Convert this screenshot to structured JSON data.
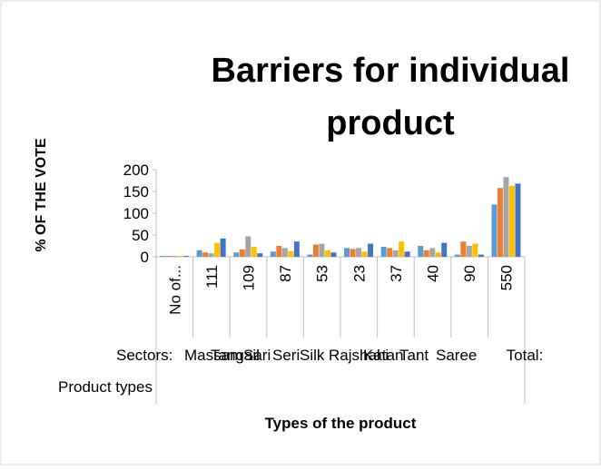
{
  "chart_data": {
    "type": "bar",
    "title": [
      "Barriers for individual",
      "product"
    ],
    "y_axis_label": "% OF THE VOTE",
    "x_axis_label": "Types of the product",
    "categories": [
      "No of...",
      "111",
      "109",
      "87",
      "53",
      "23",
      "37",
      "40",
      "90",
      "550"
    ],
    "outer_categories": [
      "Sectors:",
      "Product types",
      "Massam",
      "Tangail",
      "Sari",
      "Seri",
      "Silk",
      "Rajshahi",
      "Katan",
      "Tant",
      "Saree",
      "Total:"
    ],
    "series": [
      {
        "color": "#5b9bd5",
        "values": [
          2,
          15,
          10,
          12,
          5,
          20,
          23,
          25,
          5,
          120
        ]
      },
      {
        "color": "#ed7d31",
        "values": [
          2,
          10,
          17,
          25,
          28,
          18,
          20,
          15,
          35,
          158
        ]
      },
      {
        "color": "#a5a5a5",
        "values": [
          2,
          8,
          47,
          20,
          30,
          20,
          15,
          20,
          25,
          183
        ]
      },
      {
        "color": "#ffc000",
        "values": [
          2,
          32,
          23,
          13,
          15,
          12,
          35,
          10,
          30,
          163
        ]
      },
      {
        "color": "#4472c4",
        "values": [
          2,
          42,
          8,
          35,
          10,
          30,
          12,
          32,
          5,
          168
        ]
      }
    ],
    "ylim": [
      0,
      200
    ],
    "yticks": [
      0,
      50,
      100,
      150,
      200
    ],
    "grid": false
  }
}
